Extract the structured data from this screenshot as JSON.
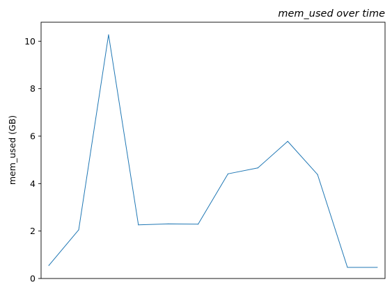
{
  "chart_data": {
    "type": "line",
    "title": "mem_used over time",
    "xlabel": "",
    "ylabel": "mem_used (GB)",
    "x": [
      0,
      1,
      2,
      3,
      4,
      5,
      6,
      7,
      8,
      9,
      10,
      11
    ],
    "series": [
      {
        "name": "",
        "values": [
          0.55,
          2.05,
          10.27,
          2.26,
          2.3,
          2.29,
          4.41,
          4.66,
          5.78,
          4.38,
          0.47,
          0.47
        ],
        "color": "#1f77b4"
      }
    ],
    "xlim": [
      -0.26,
      11.26
    ],
    "ylim": [
      0,
      10.8
    ],
    "yticks": [
      0,
      2,
      4,
      6,
      8,
      10
    ],
    "ytick_labels": [
      "0",
      "2",
      "4",
      "6",
      "8",
      "10"
    ],
    "grid": false,
    "legend": false
  }
}
